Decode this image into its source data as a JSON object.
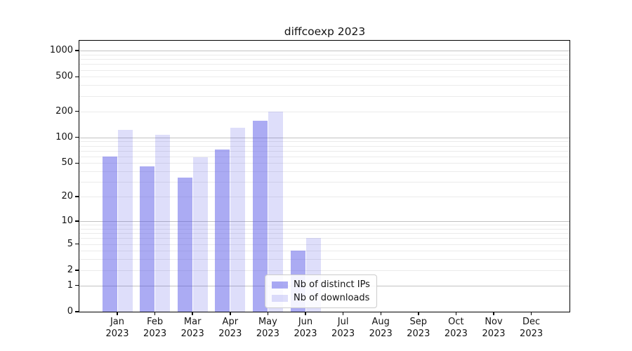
{
  "title": "diffcoexp 2023",
  "legend": {
    "items": [
      {
        "label": "Nb of distinct IPs",
        "color": "rgba(80,80,230,0.48)"
      },
      {
        "label": "Nb of downloads",
        "color": "rgba(80,80,230,0.19)"
      }
    ]
  },
  "chart_data": {
    "type": "bar",
    "title": "diffcoexp 2023",
    "categories": [
      {
        "month": "Jan",
        "year": "2023"
      },
      {
        "month": "Feb",
        "year": "2023"
      },
      {
        "month": "Mar",
        "year": "2023"
      },
      {
        "month": "Apr",
        "year": "2023"
      },
      {
        "month": "May",
        "year": "2023"
      },
      {
        "month": "Jun",
        "year": "2023"
      },
      {
        "month": "Jul",
        "year": "2023"
      },
      {
        "month": "Aug",
        "year": "2023"
      },
      {
        "month": "Sep",
        "year": "2023"
      },
      {
        "month": "Oct",
        "year": "2023"
      },
      {
        "month": "Nov",
        "year": "2023"
      },
      {
        "month": "Dec",
        "year": "2023"
      }
    ],
    "series": [
      {
        "name": "Nb of distinct IPs",
        "color": "rgba(80,80,230,0.48)",
        "values": [
          60,
          46,
          34,
          72,
          157,
          4,
          0,
          0,
          0,
          0,
          0,
          0
        ]
      },
      {
        "name": "Nb of downloads",
        "color": "rgba(80,80,230,0.19)",
        "values": [
          121,
          107,
          59,
          130,
          200,
          6,
          0,
          0,
          0,
          0,
          0,
          0
        ]
      }
    ],
    "xlabel": "",
    "ylabel": "",
    "yticks": [
      0,
      1,
      2,
      5,
      10,
      20,
      50,
      100,
      200,
      500,
      1000
    ],
    "ylim": [
      0,
      1300
    ],
    "scale": "log10(1+v)",
    "grid": {
      "major_at": [
        1,
        10,
        100,
        1000
      ],
      "minor": "2-9 per decade"
    },
    "legend_position": "lower center",
    "colors": {
      "grid_major": "#c2c2c2",
      "grid_minor": "#ebebeb",
      "axis": "#000000",
      "text": "#141414"
    }
  }
}
